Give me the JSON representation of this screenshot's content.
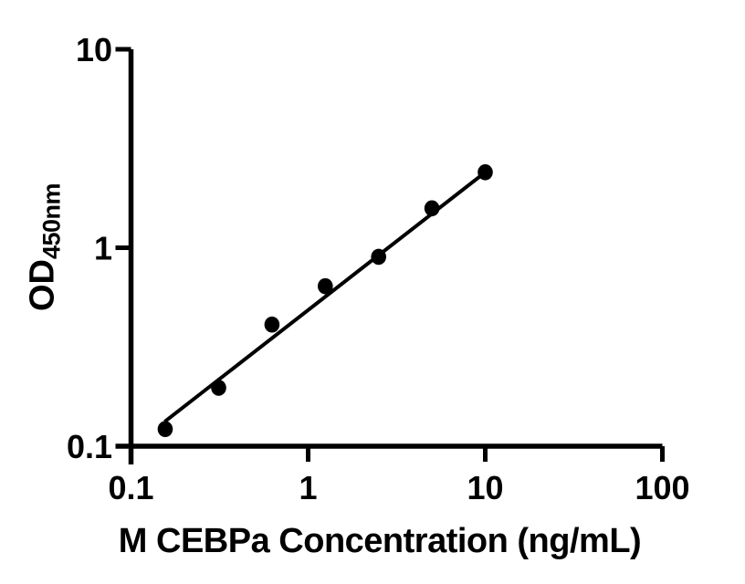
{
  "figure": {
    "background": "#ffffff"
  },
  "chart_data": {
    "type": "scatter",
    "title": "",
    "xlabel": "M CEBPa Concentration (ng/mL)",
    "ylabel_main": "OD",
    "ylabel_sub": "450nm",
    "x_scale": "log",
    "y_scale": "log",
    "xlim": [
      0.1,
      100
    ],
    "ylim": [
      0.1,
      10
    ],
    "x_ticks": {
      "values": [
        0.1,
        1,
        10,
        100
      ],
      "labels": [
        "0.1",
        "1",
        "10",
        "100"
      ]
    },
    "y_ticks": {
      "values": [
        0.1,
        1,
        10
      ],
      "labels": [
        "0.1",
        "1",
        "10"
      ]
    },
    "grid": false,
    "legend": "none",
    "series": [
      {
        "name": "fit-line",
        "type": "line",
        "color": "#000000",
        "x": [
          0.155,
          10
        ],
        "y": [
          0.133,
          2.4
        ]
      },
      {
        "name": "standard-points",
        "type": "scatter",
        "marker": "filled-circle",
        "color": "#000000",
        "x": [
          0.156,
          0.3125,
          0.625,
          1.25,
          2.5,
          5,
          10
        ],
        "y": [
          0.122,
          0.197,
          0.41,
          0.64,
          0.9,
          1.58,
          2.4
        ]
      }
    ]
  }
}
